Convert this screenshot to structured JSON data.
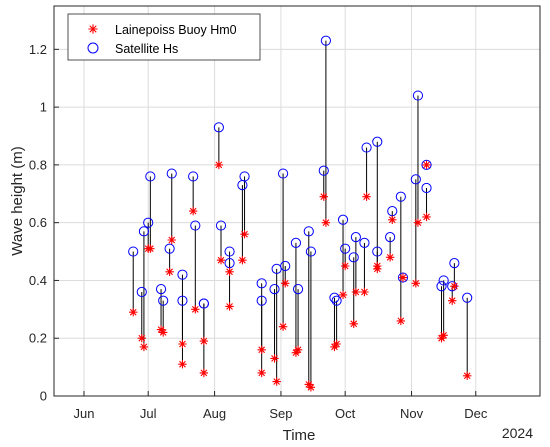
{
  "chart_data": {
    "type": "scatter",
    "xlabel": "Time",
    "ylabel": "Wave height (m)",
    "year_label": "2024",
    "x_ticks": [
      "Jun",
      "Jul",
      "Aug",
      "Sep",
      "Oct",
      "Nov",
      "Dec"
    ],
    "x_tick_dates": [
      "2024-06-01",
      "2024-07-01",
      "2024-08-01",
      "2024-09-01",
      "2024-10-01",
      "2024-11-01",
      "2024-12-01"
    ],
    "xlim": [
      "2024-05-18",
      "2024-12-31"
    ],
    "ylim": [
      0,
      1.35
    ],
    "y_ticks": [
      0,
      0.2,
      0.4,
      0.6,
      0.8,
      1,
      1.2
    ],
    "y_tick_labels": [
      "0",
      "0.2",
      "0.4",
      "0.6",
      "0.8",
      "1",
      "1.2"
    ],
    "grid": true,
    "legend_position": "top-left",
    "legend": [
      {
        "label": "Lainepoiss Buoy Hm0",
        "marker": "asterisk",
        "color": "#ff0000"
      },
      {
        "label": "Satellite Hs",
        "marker": "circle",
        "color": "#0000ff"
      }
    ],
    "series": [
      {
        "name": "Lainepoiss Buoy Hm0",
        "points": [
          [
            "2024-06-24",
            0.29
          ],
          [
            "2024-06-28",
            0.2
          ],
          [
            "2024-06-29",
            0.17
          ],
          [
            "2024-07-01",
            0.51
          ],
          [
            "2024-07-02",
            0.51
          ],
          [
            "2024-07-07",
            0.23
          ],
          [
            "2024-07-08",
            0.22
          ],
          [
            "2024-07-11",
            0.43
          ],
          [
            "2024-07-12",
            0.54
          ],
          [
            "2024-07-17",
            0.11
          ],
          [
            "2024-07-17",
            0.18
          ],
          [
            "2024-07-22",
            0.64
          ],
          [
            "2024-07-23",
            0.3
          ],
          [
            "2024-07-27",
            0.08
          ],
          [
            "2024-07-27",
            0.19
          ],
          [
            "2024-08-03",
            0.8
          ],
          [
            "2024-08-04",
            0.47
          ],
          [
            "2024-08-08",
            0.31
          ],
          [
            "2024-08-08",
            0.43
          ],
          [
            "2024-08-14",
            0.47
          ],
          [
            "2024-08-15",
            0.56
          ],
          [
            "2024-08-23",
            0.08
          ],
          [
            "2024-08-23",
            0.16
          ],
          [
            "2024-08-29",
            0.13
          ],
          [
            "2024-08-30",
            0.05
          ],
          [
            "2024-09-02",
            0.24
          ],
          [
            "2024-09-03",
            0.39
          ],
          [
            "2024-09-08",
            0.15
          ],
          [
            "2024-09-09",
            0.16
          ],
          [
            "2024-09-14",
            0.04
          ],
          [
            "2024-09-15",
            0.03
          ],
          [
            "2024-09-21",
            0.69
          ],
          [
            "2024-09-22",
            0.6
          ],
          [
            "2024-09-26",
            0.17
          ],
          [
            "2024-09-27",
            0.18
          ],
          [
            "2024-09-30",
            0.35
          ],
          [
            "2024-10-01",
            0.45
          ],
          [
            "2024-10-05",
            0.25
          ],
          [
            "2024-10-06",
            0.36
          ],
          [
            "2024-10-10",
            0.36
          ],
          [
            "2024-10-11",
            0.69
          ],
          [
            "2024-10-16",
            0.44
          ],
          [
            "2024-10-16",
            0.45
          ],
          [
            "2024-10-22",
            0.48
          ],
          [
            "2024-10-23",
            0.61
          ],
          [
            "2024-10-27",
            0.26
          ],
          [
            "2024-10-28",
            0.41
          ],
          [
            "2024-11-03",
            0.39
          ],
          [
            "2024-11-04",
            0.6
          ],
          [
            "2024-11-08",
            0.62
          ],
          [
            "2024-11-08",
            0.8
          ],
          [
            "2024-11-15",
            0.2
          ],
          [
            "2024-11-16",
            0.21
          ],
          [
            "2024-11-20",
            0.33
          ],
          [
            "2024-11-21",
            0.38
          ],
          [
            "2024-11-27",
            0.07
          ]
        ]
      },
      {
        "name": "Satellite Hs",
        "points": [
          [
            "2024-06-24",
            0.5
          ],
          [
            "2024-06-28",
            0.36
          ],
          [
            "2024-06-29",
            0.57
          ],
          [
            "2024-07-01",
            0.6
          ],
          [
            "2024-07-02",
            0.76
          ],
          [
            "2024-07-07",
            0.37
          ],
          [
            "2024-07-08",
            0.33
          ],
          [
            "2024-07-11",
            0.51
          ],
          [
            "2024-07-12",
            0.77
          ],
          [
            "2024-07-17",
            0.33
          ],
          [
            "2024-07-17",
            0.42
          ],
          [
            "2024-07-22",
            0.76
          ],
          [
            "2024-07-23",
            0.59
          ],
          [
            "2024-07-27",
            0.32
          ],
          [
            "2024-07-27",
            0.32
          ],
          [
            "2024-08-03",
            0.93
          ],
          [
            "2024-08-04",
            0.59
          ],
          [
            "2024-08-08",
            0.46
          ],
          [
            "2024-08-08",
            0.5
          ],
          [
            "2024-08-14",
            0.73
          ],
          [
            "2024-08-15",
            0.76
          ],
          [
            "2024-08-23",
            0.39
          ],
          [
            "2024-08-23",
            0.33
          ],
          [
            "2024-08-29",
            0.37
          ],
          [
            "2024-08-30",
            0.44
          ],
          [
            "2024-09-02",
            0.77
          ],
          [
            "2024-09-03",
            0.45
          ],
          [
            "2024-09-08",
            0.53
          ],
          [
            "2024-09-09",
            0.37
          ],
          [
            "2024-09-14",
            0.57
          ],
          [
            "2024-09-15",
            0.5
          ],
          [
            "2024-09-21",
            0.78
          ],
          [
            "2024-09-22",
            1.23
          ],
          [
            "2024-09-26",
            0.34
          ],
          [
            "2024-09-27",
            0.33
          ],
          [
            "2024-09-30",
            0.61
          ],
          [
            "2024-10-01",
            0.51
          ],
          [
            "2024-10-05",
            0.48
          ],
          [
            "2024-10-06",
            0.55
          ],
          [
            "2024-10-10",
            0.53
          ],
          [
            "2024-10-11",
            0.86
          ],
          [
            "2024-10-16",
            0.88
          ],
          [
            "2024-10-16",
            0.5
          ],
          [
            "2024-10-22",
            0.55
          ],
          [
            "2024-10-23",
            0.64
          ],
          [
            "2024-10-27",
            0.69
          ],
          [
            "2024-10-28",
            0.41
          ],
          [
            "2024-11-03",
            0.75
          ],
          [
            "2024-11-04",
            1.04
          ],
          [
            "2024-11-08",
            0.72
          ],
          [
            "2024-11-08",
            0.8
          ],
          [
            "2024-11-15",
            0.38
          ],
          [
            "2024-11-16",
            0.4
          ],
          [
            "2024-11-20",
            0.38
          ],
          [
            "2024-11-21",
            0.46
          ],
          [
            "2024-11-27",
            0.34
          ]
        ]
      }
    ]
  }
}
